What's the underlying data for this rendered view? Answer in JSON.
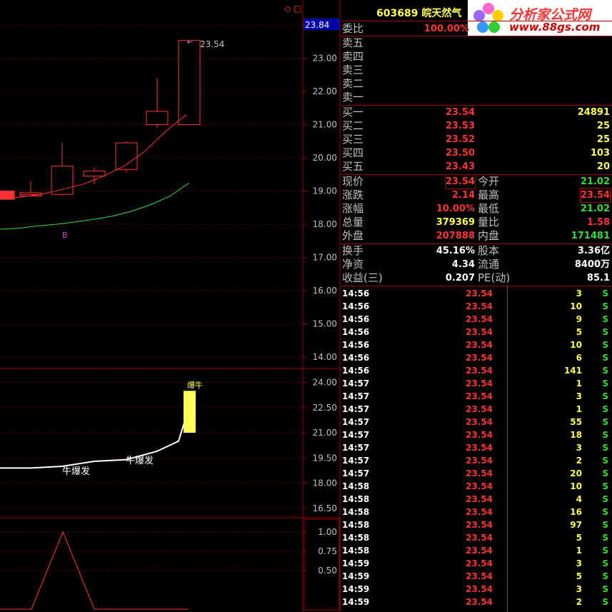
{
  "colors": {
    "red": "#ff3333",
    "green": "#33dd33",
    "yellow": "#ffff55",
    "axis": "#a00000",
    "white": "#ffffff",
    "blue_hl": "#0000aa"
  },
  "header": {
    "stock_code": "603689",
    "stock_name": "皖天然气"
  },
  "logo": {
    "title": "分析家公式网",
    "url": "www.88gs.com",
    "icon": "flower-logo-icon"
  },
  "price_axis": {
    "current": "23.84",
    "ticks": [
      "23.00",
      "22.00",
      "21.00",
      "20.00",
      "19.00",
      "18.00",
      "17.00",
      "16.00",
      "15.00",
      "14.00"
    ]
  },
  "indicator_axis": {
    "ticks": [
      "24.00",
      "22.50",
      "21.00",
      "19.50",
      "18.00",
      "16.50"
    ]
  },
  "bottom_axis": {
    "ticks": [
      "1.00",
      "0.75",
      "0.50"
    ]
  },
  "chart_annotations": {
    "high_price": "23.54",
    "marker_b": "B",
    "bull_label": "牛爆发",
    "signal_label": "爆牛"
  },
  "chart_data": {
    "type": "candlestick",
    "candles": [
      {
        "open": 19.0,
        "close": 18.75,
        "high": 19.0,
        "low": 18.75
      },
      {
        "open": 18.85,
        "close": 18.9,
        "high": 19.1,
        "low": 18.85
      },
      {
        "open": 18.9,
        "close": 18.95,
        "high": 19.3,
        "low": 18.9
      },
      {
        "open": 18.9,
        "close": 19.75,
        "high": 20.45,
        "low": 18.85
      },
      {
        "open": 19.45,
        "close": 19.6,
        "high": 19.7,
        "low": 19.2
      },
      {
        "open": 19.65,
        "close": 20.45,
        "high": 20.5,
        "low": 19.55
      },
      {
        "open": 21.0,
        "close": 21.4,
        "high": 22.4,
        "low": 20.9
      },
      {
        "open": 21.0,
        "close": 23.54,
        "high": 23.54,
        "low": 21.0
      }
    ],
    "ma_red": [
      18.75,
      18.82,
      18.9,
      19.05,
      19.2,
      19.45,
      19.75,
      20.2,
      20.8,
      21.3
    ],
    "ma_green": [
      17.85,
      17.88,
      17.95,
      18.0,
      18.07,
      18.15,
      18.25,
      18.4,
      18.6,
      18.85,
      19.25
    ],
    "indicator_line": [
      18.9,
      18.9,
      19.0,
      19.3,
      19.4,
      19.9,
      20.5,
      21.6
    ],
    "bottom_line": [
      0,
      0,
      1,
      0,
      0,
      0,
      0
    ]
  },
  "quote": {
    "weibi_label": "委比",
    "weibi_value": "100.00%",
    "sell": [
      {
        "label": "卖五"
      },
      {
        "label": "卖四"
      },
      {
        "label": "卖三"
      },
      {
        "label": "卖二"
      },
      {
        "label": "卖一"
      }
    ],
    "buy": [
      {
        "label": "买一",
        "price": "23.54",
        "vol": "24891"
      },
      {
        "label": "买二",
        "price": "23.53",
        "vol": "25"
      },
      {
        "label": "买三",
        "price": "23.52",
        "vol": "25"
      },
      {
        "label": "买四",
        "price": "23.50",
        "vol": "103"
      },
      {
        "label": "买五",
        "price": "23.43",
        "vol": "20"
      }
    ],
    "stats": [
      {
        "l1": "现价",
        "v1": "23.54",
        "l2": "今开",
        "v2": "21.02"
      },
      {
        "l1": "涨跌",
        "v1": "2.14",
        "l2": "最高",
        "v2": "23.54"
      },
      {
        "l1": "涨幅",
        "v1": "10.00%",
        "l2": "最低",
        "v2": "21.02"
      },
      {
        "l1": "总量",
        "v1": "379369",
        "l2": "量比",
        "v2": "1.58"
      },
      {
        "l1": "外盘",
        "v1": "207888",
        "l2": "内盘",
        "v2": "171481"
      }
    ],
    "fund": [
      {
        "l1": "换手",
        "v1": "45.16%",
        "l2": "股本",
        "v2": "3.36亿"
      },
      {
        "l1": "净资",
        "v1": "4.34",
        "l2": "流通",
        "v2": "8400万"
      },
      {
        "l1": "收益(三)",
        "v1": "0.207",
        "l2": "PE(动)",
        "v2": "85.1"
      }
    ]
  },
  "ticks": [
    {
      "time": "14:56",
      "price": "23.54",
      "vol": "3",
      "side": "S"
    },
    {
      "time": "14:56",
      "price": "23.54",
      "vol": "10",
      "side": "S"
    },
    {
      "time": "14:56",
      "price": "23.54",
      "vol": "9",
      "side": "S"
    },
    {
      "time": "14:56",
      "price": "23.54",
      "vol": "5",
      "side": "S"
    },
    {
      "time": "14:56",
      "price": "23.54",
      "vol": "10",
      "side": "S"
    },
    {
      "time": "14:56",
      "price": "23.54",
      "vol": "6",
      "side": "S"
    },
    {
      "time": "14:56",
      "price": "23.54",
      "vol": "141",
      "side": "S"
    },
    {
      "time": "14:57",
      "price": "23.54",
      "vol": "1",
      "side": "S"
    },
    {
      "time": "14:57",
      "price": "23.54",
      "vol": "3",
      "side": "S"
    },
    {
      "time": "14:57",
      "price": "23.54",
      "vol": "1",
      "side": "S"
    },
    {
      "time": "14:57",
      "price": "23.54",
      "vol": "55",
      "side": "S"
    },
    {
      "time": "14:57",
      "price": "23.54",
      "vol": "18",
      "side": "S"
    },
    {
      "time": "14:57",
      "price": "23.54",
      "vol": "3",
      "side": "S"
    },
    {
      "time": "14:57",
      "price": "23.54",
      "vol": "2",
      "side": "S"
    },
    {
      "time": "14:57",
      "price": "23.54",
      "vol": "20",
      "side": "S"
    },
    {
      "time": "14:58",
      "price": "23.54",
      "vol": "10",
      "side": "S"
    },
    {
      "time": "14:58",
      "price": "23.54",
      "vol": "4",
      "side": "S"
    },
    {
      "time": "14:58",
      "price": "23.54",
      "vol": "16",
      "side": "S"
    },
    {
      "time": "14:58",
      "price": "23.54",
      "vol": "97",
      "side": "S"
    },
    {
      "time": "14:58",
      "price": "23.54",
      "vol": "5",
      "side": "S"
    },
    {
      "time": "14:58",
      "price": "23.54",
      "vol": "1",
      "side": "S"
    },
    {
      "time": "14:59",
      "price": "23.54",
      "vol": "3",
      "side": "S"
    },
    {
      "time": "14:59",
      "price": "23.54",
      "vol": "5",
      "side": "S"
    },
    {
      "time": "14:59",
      "price": "23.54",
      "vol": "3",
      "side": "S"
    },
    {
      "time": "14:59",
      "price": "23.54",
      "vol": "2",
      "side": "S"
    }
  ]
}
